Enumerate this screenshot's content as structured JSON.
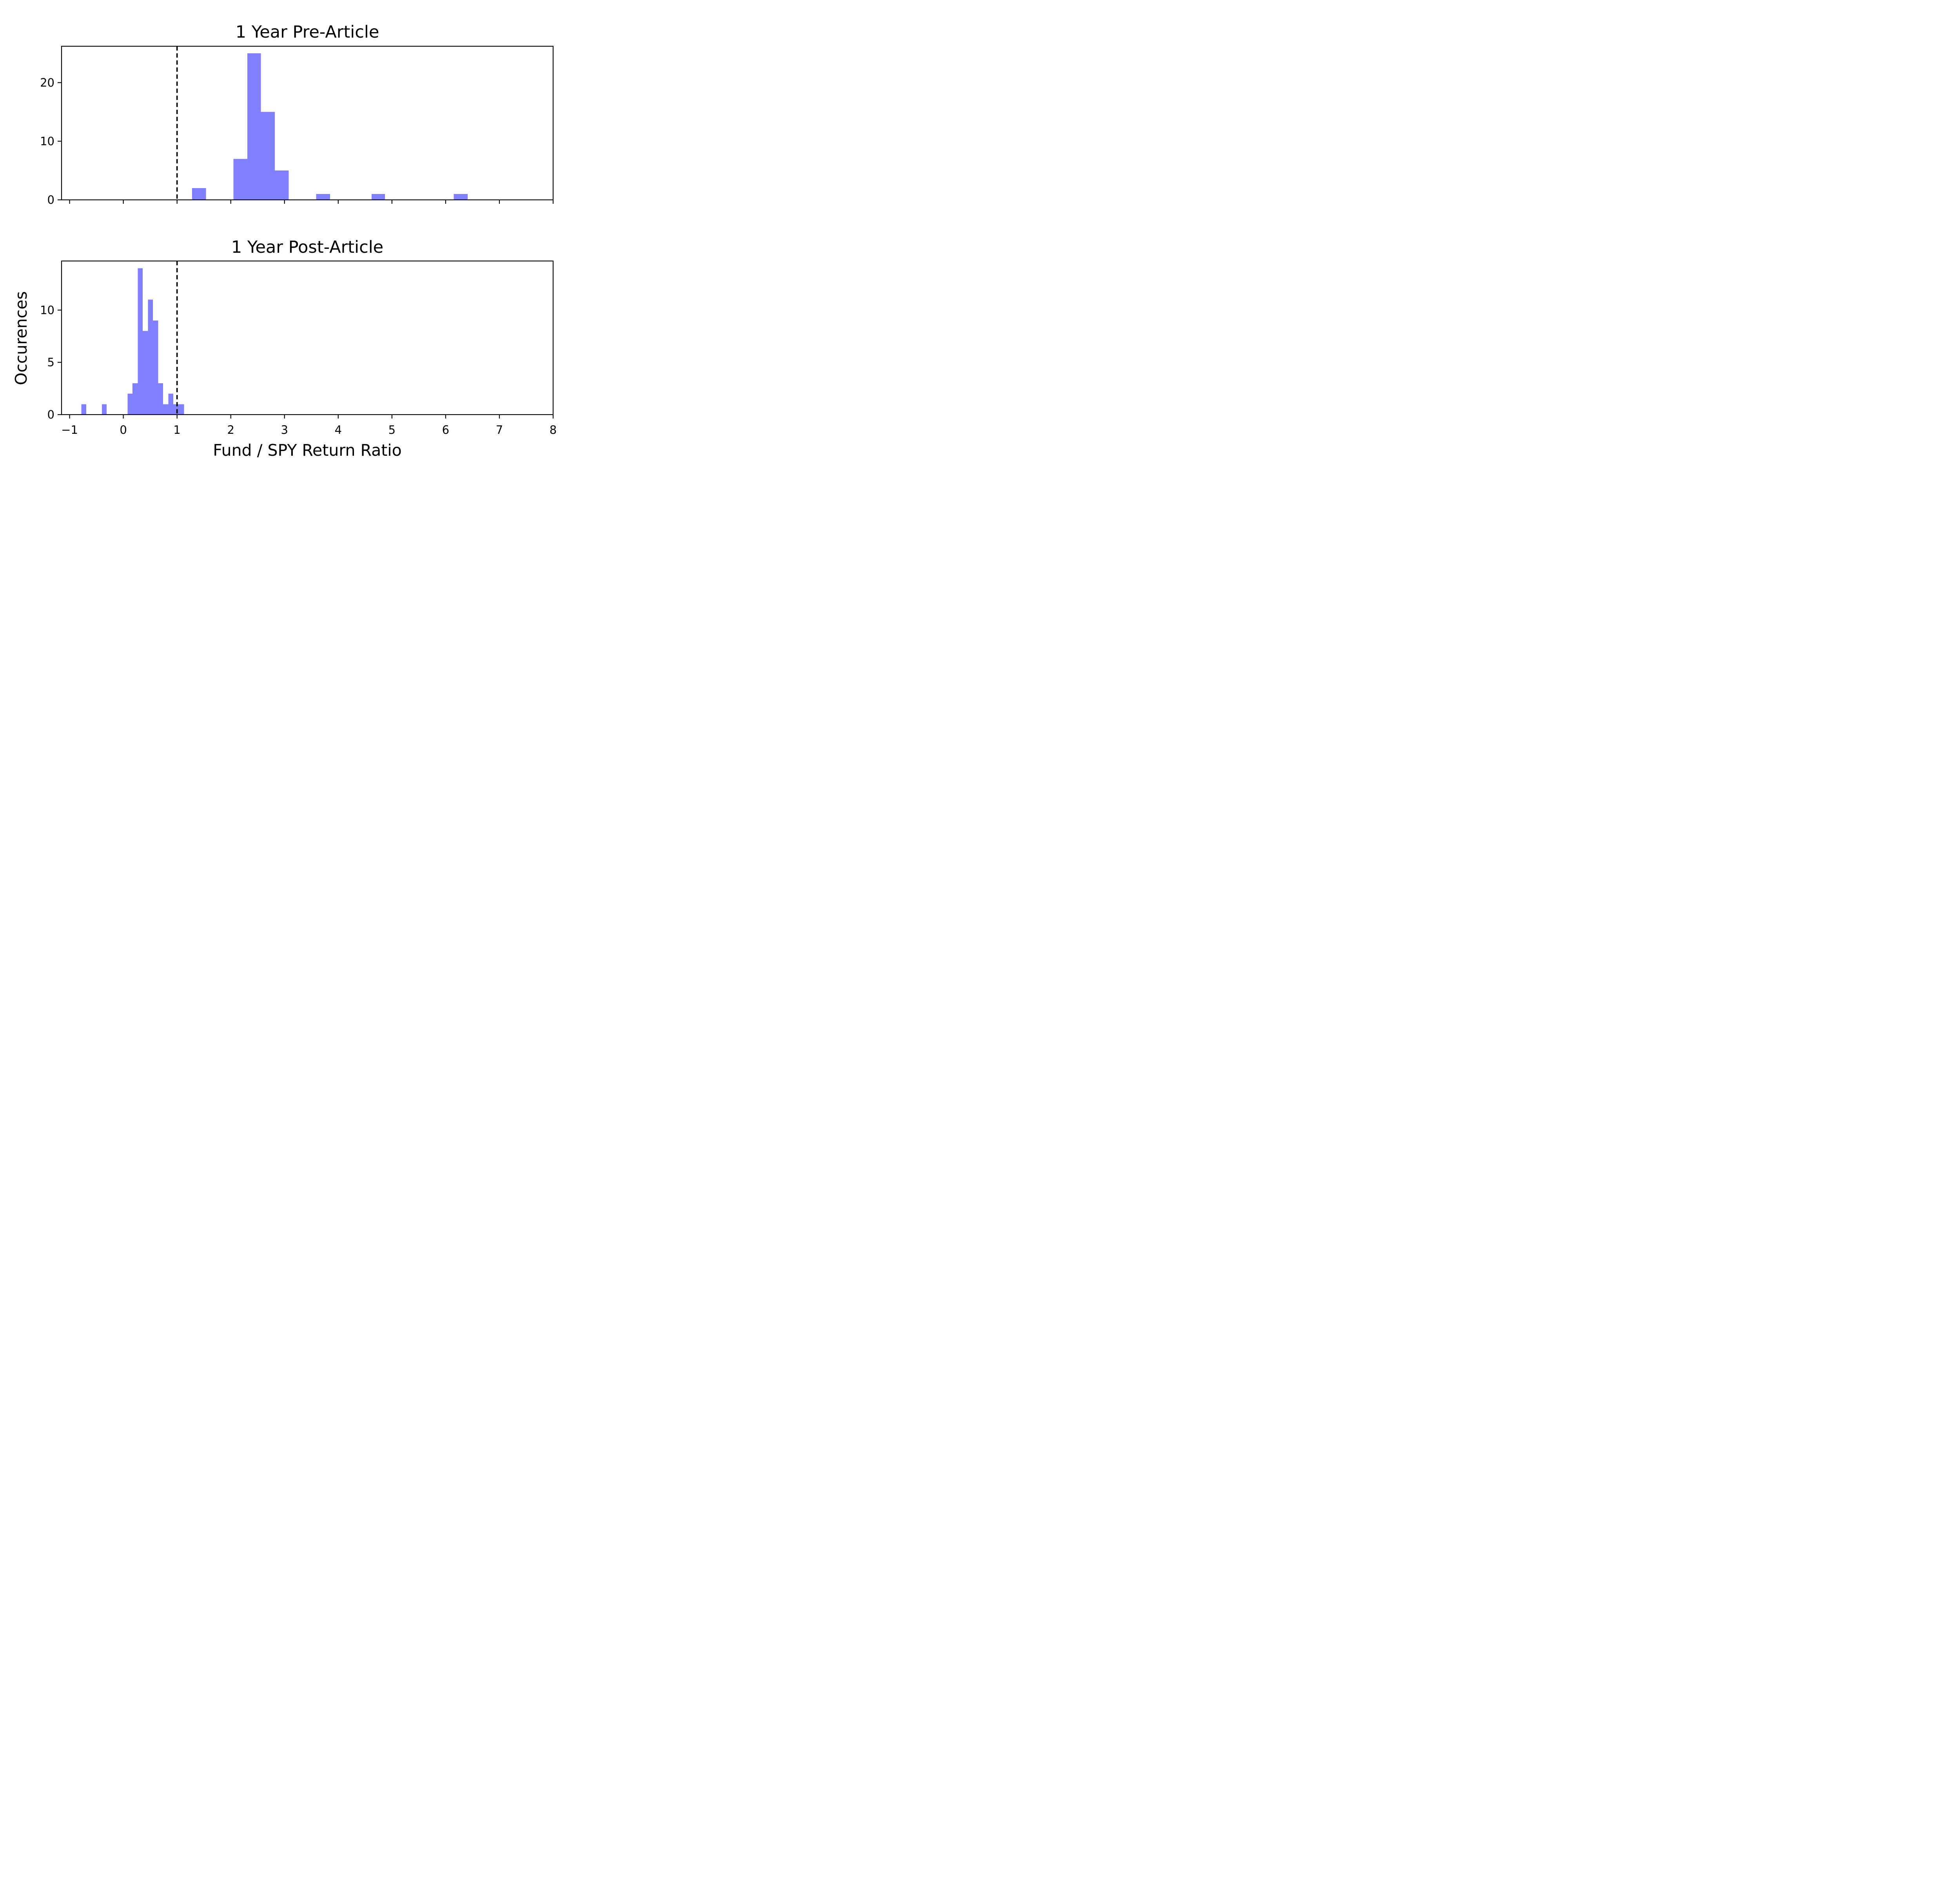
{
  "chart_data": [
    {
      "type": "bar",
      "title": "1 Year Pre-Article",
      "xlim": [
        -1.15,
        8.0
      ],
      "ylim": [
        0,
        26.2
      ],
      "yticks": [
        0,
        10,
        20
      ],
      "xticks": [
        -1,
        0,
        1,
        2,
        3,
        4,
        5,
        6,
        7,
        8
      ],
      "show_xtick_labels": false,
      "reference_line_x": 1,
      "bar_color": "#8080ff",
      "bins": [
        {
          "x0": 1.28,
          "x1": 1.54,
          "count": 2
        },
        {
          "x0": 2.05,
          "x1": 2.31,
          "count": 7
        },
        {
          "x0": 2.31,
          "x1": 2.56,
          "count": 25
        },
        {
          "x0": 2.56,
          "x1": 2.82,
          "count": 15
        },
        {
          "x0": 2.82,
          "x1": 3.08,
          "count": 5
        },
        {
          "x0": 3.59,
          "x1": 3.85,
          "count": 1
        },
        {
          "x0": 4.62,
          "x1": 4.87,
          "count": 1
        },
        {
          "x0": 6.15,
          "x1": 6.41,
          "count": 1
        }
      ]
    },
    {
      "type": "bar",
      "title": "1 Year Post-Article",
      "xlim": [
        -1.15,
        8.0
      ],
      "ylim": [
        0,
        14.7
      ],
      "yticks": [
        0,
        5,
        10
      ],
      "xticks": [
        -1,
        0,
        1,
        2,
        3,
        4,
        5,
        6,
        7,
        8
      ],
      "xtick_labels": [
        "−1",
        "0",
        "1",
        "2",
        "3",
        "4",
        "5",
        "6",
        "7",
        "8"
      ],
      "show_xtick_labels": true,
      "reference_line_x": 1,
      "bar_color": "#8080ff",
      "bins": [
        {
          "x0": -0.78,
          "x1": -0.69,
          "count": 1
        },
        {
          "x0": -0.4,
          "x1": -0.31,
          "count": 1
        },
        {
          "x0": 0.08,
          "x1": 0.17,
          "count": 2
        },
        {
          "x0": 0.17,
          "x1": 0.27,
          "count": 3
        },
        {
          "x0": 0.27,
          "x1": 0.36,
          "count": 14
        },
        {
          "x0": 0.36,
          "x1": 0.46,
          "count": 8
        },
        {
          "x0": 0.46,
          "x1": 0.55,
          "count": 11
        },
        {
          "x0": 0.55,
          "x1": 0.65,
          "count": 9
        },
        {
          "x0": 0.65,
          "x1": 0.74,
          "count": 3
        },
        {
          "x0": 0.74,
          "x1": 0.84,
          "count": 1
        },
        {
          "x0": 0.84,
          "x1": 0.93,
          "count": 2
        },
        {
          "x0": 0.93,
          "x1": 1.03,
          "count": 1
        },
        {
          "x0": 1.03,
          "x1": 1.13,
          "count": 1
        }
      ]
    }
  ],
  "xlabel": "Fund / SPY Return Ratio",
  "ylabel": "Occurences"
}
